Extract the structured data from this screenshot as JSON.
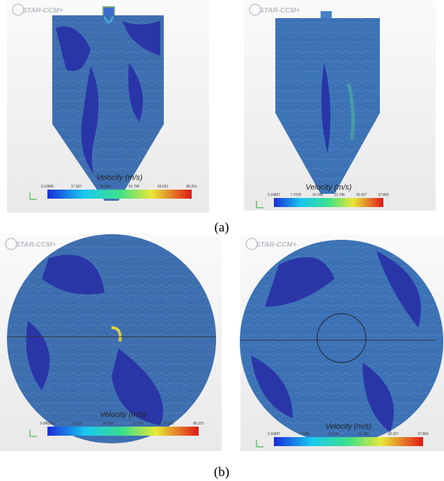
{
  "panels": [
    {
      "logo": "STAR-CCM+",
      "colorbar": {
        "title": "Velocity (m/s)",
        "ticks": [
          "0.10905",
          "17.337",
          "34.565",
          "51.794",
          "69.023",
          "86.251"
        ]
      }
    },
    {
      "logo": "STAR-CCM+",
      "colorbar": {
        "title": "Velocity (m/s)",
        "ticks": [
          "0.16897",
          "7.7078",
          "15.246",
          "22.786",
          "30.327",
          "37.866"
        ]
      }
    },
    {
      "logo": "STAR-CCM+",
      "colorbar": {
        "title": "Velocity (m/s)",
        "ticks": [
          "0.096259",
          "17.327",
          "34.558",
          "51.789",
          "69.020",
          "86.251"
        ]
      }
    },
    {
      "logo": "STAR-CCM+",
      "colorbar": {
        "title": "Velocity (m/s)",
        "ticks": [
          "0.16897",
          "7.7078",
          "15.244",
          "22.788",
          "30.327",
          "37.866"
        ]
      }
    }
  ],
  "captions": [
    "(a)",
    "(b)"
  ]
}
